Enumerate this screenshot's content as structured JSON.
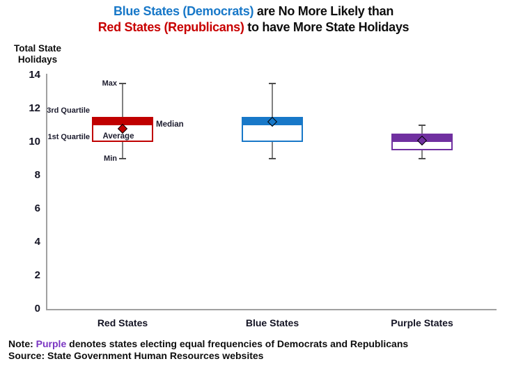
{
  "title": {
    "line1": {
      "highlight": "Blue States (Democrats)",
      "rest": " are No More Likely than"
    },
    "line2": {
      "highlight": "Red States (Republicans)",
      "rest": " to have More State Holidays"
    }
  },
  "colors": {
    "title_blue": "#1878C8",
    "title_red": "#C80000",
    "red_box": "#C00000",
    "blue_box": "#1878C8",
    "purple_box": "#7030A0",
    "note_purple": "#7A35C2",
    "axis_gray": "#A0A0A0",
    "whisker_gray": "#808080"
  },
  "y_axis": {
    "label_lines": [
      "Total State",
      "Holidays"
    ]
  },
  "chart_data": {
    "type": "boxplot",
    "title": "Blue States (Democrats) are No More Likely than Red States (Republicans) to have More State Holidays",
    "ylabel": "Total State Holidays",
    "ylim": [
      0,
      14
    ],
    "yticks": [
      0,
      2,
      4,
      6,
      8,
      10,
      12,
      14
    ],
    "grid": false,
    "legend": false,
    "categories": [
      "Red States",
      "Blue States",
      "Purple States"
    ],
    "series": [
      {
        "name": "Red States",
        "color": "#C00000",
        "min": 9,
        "q1": 10,
        "median": 11,
        "q3": 11.5,
        "max": 13.5,
        "average": 10.8
      },
      {
        "name": "Blue States",
        "color": "#1878C8",
        "min": 9,
        "q1": 10,
        "median": 11,
        "q3": 11.5,
        "max": 13.5,
        "average": 11.2
      },
      {
        "name": "Purple States",
        "color": "#7030A0",
        "min": 9,
        "q1": 9.5,
        "median": 10,
        "q3": 10.5,
        "max": 11,
        "average": 10.1
      }
    ],
    "annotations": {
      "max": "Max",
      "q3": "3rd Quartile",
      "q1": "1st Quartile",
      "min": "Min",
      "median": "Median",
      "average": "Average"
    }
  },
  "footer": {
    "note": {
      "prefix": "Note: ",
      "highlight": "Purple",
      "rest": " denotes states electing equal frequencies of Democrats and Republicans"
    },
    "source": "Source: State Government Human Resources websites"
  }
}
